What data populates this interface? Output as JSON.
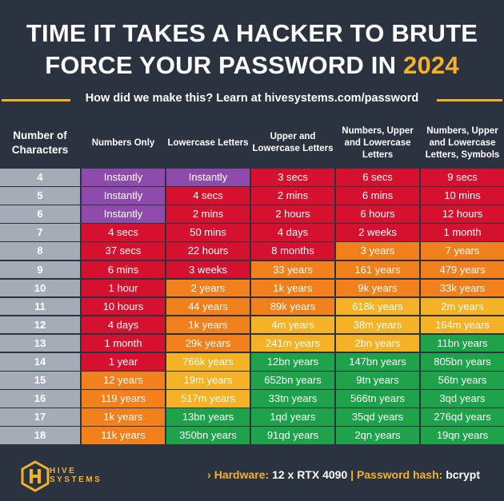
{
  "title": {
    "line1": "TIME IT TAKES A HACKER TO BRUTE",
    "line2_prefix": "FORCE YOUR PASSWORD IN ",
    "year": "2024"
  },
  "subtitle": "How did we make this? Learn at hivesystems.com/password",
  "headers": {
    "characters": "Number of Characters",
    "numbers_only": "Numbers Only",
    "lowercase": "Lowercase Letters",
    "upper_lower": "Upper and Lowercase Letters",
    "num_upper_lower": "Numbers, Upper and Lowercase Letters",
    "num_upper_lower_sym": "Numbers, Upper and Lowercase Letters, Symbols"
  },
  "colors": {
    "purple": "#8e4bab",
    "red": "#d6112f",
    "orange": "#f2801c",
    "yellow": "#f5b227",
    "green": "#1ea34a",
    "gray": "#a6acb6",
    "bg": "#2b3240"
  },
  "rows": [
    {
      "chars": "4",
      "values": [
        "Instantly",
        "Instantly",
        "3 secs",
        "6 secs",
        "9 secs"
      ],
      "colors": [
        "purple",
        "purple",
        "red",
        "red",
        "red"
      ]
    },
    {
      "chars": "5",
      "values": [
        "Instantly",
        "4 secs",
        "2 mins",
        "6 mins",
        "10 mins"
      ],
      "colors": [
        "purple",
        "red",
        "red",
        "red",
        "red"
      ]
    },
    {
      "chars": "6",
      "values": [
        "Instantly",
        "2 mins",
        "2 hours",
        "6 hours",
        "12 hours"
      ],
      "colors": [
        "purple",
        "red",
        "red",
        "red",
        "red"
      ]
    },
    {
      "chars": "7",
      "values": [
        "4 secs",
        "50 mins",
        "4 days",
        "2 weeks",
        "1 month"
      ],
      "colors": [
        "red",
        "red",
        "red",
        "red",
        "red"
      ]
    },
    {
      "chars": "8",
      "values": [
        "37 secs",
        "22 hours",
        "8 months",
        "3 years",
        "7 years"
      ],
      "colors": [
        "red",
        "red",
        "red",
        "orange",
        "orange"
      ]
    },
    {
      "chars": "9",
      "values": [
        "6 mins",
        "3 weeks",
        "33 years",
        "161 years",
        "479 years"
      ],
      "colors": [
        "red",
        "red",
        "orange",
        "orange",
        "orange"
      ]
    },
    {
      "chars": "10",
      "values": [
        "1 hour",
        "2 years",
        "1k years",
        "9k years",
        "33k years"
      ],
      "colors": [
        "red",
        "orange",
        "orange",
        "orange",
        "orange"
      ]
    },
    {
      "chars": "11",
      "values": [
        "10 hours",
        "44 years",
        "89k years",
        "618k years",
        "2m years"
      ],
      "colors": [
        "red",
        "orange",
        "orange",
        "yellow",
        "yellow"
      ]
    },
    {
      "chars": "12",
      "values": [
        "4 days",
        "1k years",
        "4m years",
        "38m years",
        "164m years"
      ],
      "colors": [
        "red",
        "orange",
        "yellow",
        "yellow",
        "yellow"
      ]
    },
    {
      "chars": "13",
      "values": [
        "1 month",
        "29k years",
        "241m years",
        "2bn years",
        "11bn years"
      ],
      "colors": [
        "red",
        "orange",
        "yellow",
        "yellow",
        "green"
      ]
    },
    {
      "chars": "14",
      "values": [
        "1 year",
        "766k years",
        "12bn years",
        "147bn years",
        "805bn years"
      ],
      "colors": [
        "red",
        "yellow",
        "green",
        "green",
        "green"
      ]
    },
    {
      "chars": "15",
      "values": [
        "12 years",
        "19m years",
        "652bn years",
        "9tn years",
        "56tn years"
      ],
      "colors": [
        "orange",
        "yellow",
        "green",
        "green",
        "green"
      ]
    },
    {
      "chars": "16",
      "values": [
        "119 years",
        "517m years",
        "33tn years",
        "566tn years",
        "3qd years"
      ],
      "colors": [
        "orange",
        "yellow",
        "green",
        "green",
        "green"
      ]
    },
    {
      "chars": "17",
      "values": [
        "1k years",
        "13bn years",
        "1qd years",
        "35qd years",
        "276qd years"
      ],
      "colors": [
        "orange",
        "green",
        "green",
        "green",
        "green"
      ]
    },
    {
      "chars": "18",
      "values": [
        "11k years",
        "350bn years",
        "91qd years",
        "2qn years",
        "19qn years"
      ],
      "colors": [
        "orange",
        "green",
        "green",
        "green",
        "green"
      ]
    }
  ],
  "footer": {
    "logo_line1": "HIVE",
    "logo_line2": "SYSTEMS",
    "chevron": "›",
    "hardware_label": "Hardware:",
    "hardware_value": "12 x RTX 4090",
    "separator": "|",
    "hash_label": "Password hash:",
    "hash_value": "bcrypt"
  }
}
